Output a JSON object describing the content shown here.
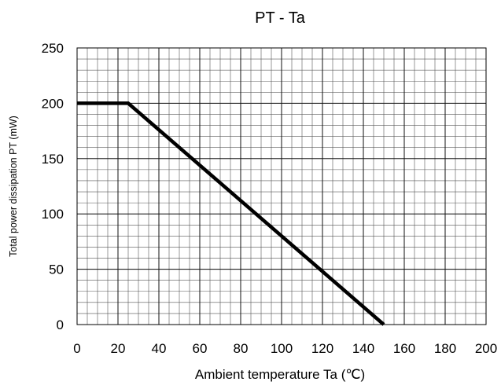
{
  "chart_data": {
    "type": "line",
    "title": "PT - Ta",
    "xlabel": "Ambient temperature Ta (℃)",
    "ylabel": "Total power dissipation PT (mW)",
    "xlim": [
      0,
      200
    ],
    "ylim": [
      0,
      250
    ],
    "x_ticks": [
      0,
      20,
      40,
      60,
      80,
      100,
      120,
      140,
      160,
      180,
      200
    ],
    "y_ticks": [
      0,
      50,
      100,
      150,
      200,
      250
    ],
    "x_tick_labels": [
      "0",
      "20",
      "40",
      "60",
      "80",
      "100",
      "120",
      "140",
      "160",
      "180",
      "200"
    ],
    "y_tick_labels": [
      "0",
      "50",
      "100",
      "150",
      "200",
      "250"
    ],
    "grid": true,
    "minor_x_step": 5,
    "minor_y_step": 10,
    "series": [
      {
        "x": [
          0,
          25,
          150
        ],
        "y": [
          200,
          200,
          0
        ],
        "color": "#000000"
      }
    ]
  }
}
